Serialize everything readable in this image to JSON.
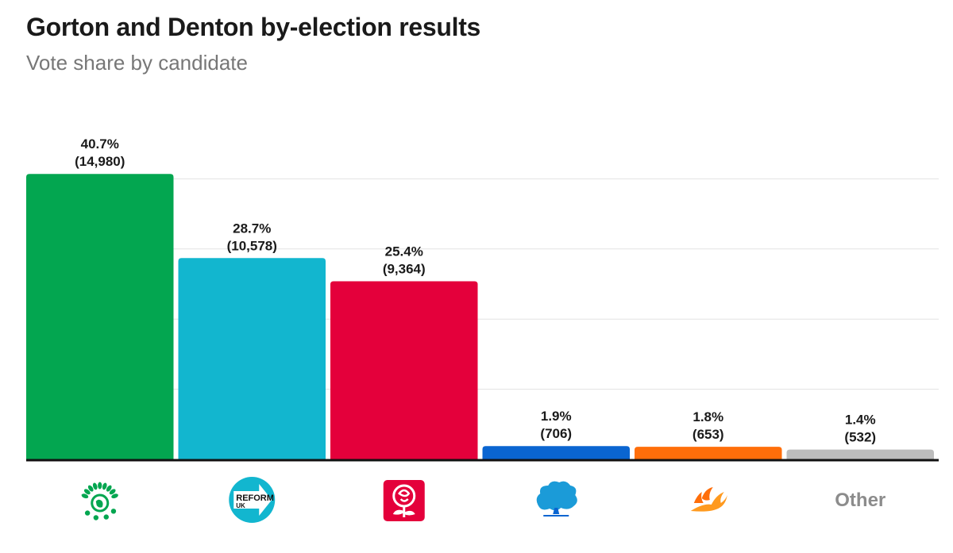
{
  "chart_data": {
    "type": "bar",
    "title": "Gorton and Denton by-election results",
    "subtitle": "Vote share by candidate",
    "ylim": [
      0,
      50
    ],
    "bars": [
      {
        "party": "Green",
        "value": 40.7,
        "pct_label": "40.7%",
        "votes_label": "(14,980)",
        "color": "#03A650",
        "icon": "green-party-logo-icon"
      },
      {
        "party": "Reform UK",
        "value": 28.7,
        "pct_label": "28.7%",
        "votes_label": "(10,578)",
        "color": "#12B6CF",
        "icon": "reform-uk-logo-icon"
      },
      {
        "party": "Labour",
        "value": 25.4,
        "pct_label": "25.4%",
        "votes_label": "(9,364)",
        "color": "#E4003B",
        "icon": "labour-rose-logo-icon"
      },
      {
        "party": "Conservative",
        "value": 1.9,
        "pct_label": "1.9%",
        "votes_label": "(706)",
        "color": "#0A65D1",
        "icon": "conservative-tree-logo-icon"
      },
      {
        "party": "Liberal Democrat",
        "value": 1.8,
        "pct_label": "1.8%",
        "votes_label": "(653)",
        "color": "#FF6E0A",
        "icon": "libdem-bird-logo-icon"
      },
      {
        "party": "Other",
        "value": 1.4,
        "pct_label": "1.4%",
        "votes_label": "(532)",
        "color": "#BDBDBD",
        "icon": "other-label",
        "label": "Other"
      }
    ],
    "logo_text": {
      "reform": "REFORM",
      "reform_sub": "UK"
    }
  },
  "colors": {
    "axis": "#111111",
    "grid": "#e3e3e3"
  }
}
